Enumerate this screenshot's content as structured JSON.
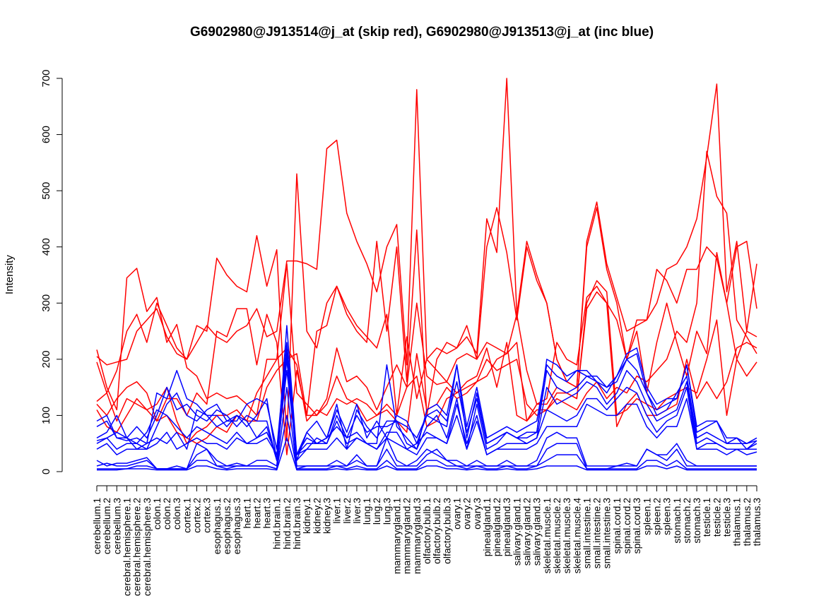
{
  "chart_data": {
    "type": "line",
    "title": "G6902980@J913514@j_at (skip red), G6902980@J913513@j_at (inc blue)",
    "ylabel": "Intensity",
    "ylim": [
      0,
      700
    ],
    "yticks": [
      0,
      100,
      200,
      300,
      400,
      500,
      600,
      700
    ],
    "categories": [
      "cerebellum.1",
      "cerebellum.2",
      "cerebellum.3",
      "cerebral.hemisphere.1",
      "cerebral.hemisphere.2",
      "cerebral.hemisphere.3",
      "colon.1",
      "colon.2",
      "colon.3",
      "cortex.1",
      "cortex.2",
      "cortex.3",
      "esophagus.1",
      "esophagus.2",
      "esophagus.3",
      "heart.1",
      "heart.2",
      "heart.3",
      "hind.brain.1",
      "hind.brain.2",
      "hind.brain.3",
      "kidney.1",
      "kidney.2",
      "kidney.3",
      "liver.1",
      "liver.2",
      "liver.3",
      "lung.1",
      "lung.2",
      "lung.3",
      "mammarygland.1",
      "mammarygland.2",
      "mammarygland.3",
      "olfactory.bulb.1",
      "olfactory.bulb.2",
      "olfactory.bulb.3",
      "ovary.1",
      "ovary.2",
      "ovary.3",
      "pinealgland.1",
      "pinealgland.2",
      "pinealgland.3",
      "salivary.gland.1",
      "salivary.gland.2",
      "salivary.gland.3",
      "skeletal.muscle.1",
      "skeletal.muscle.2",
      "skeletal.muscle.3",
      "skeletal.muscle.4",
      "small.intestine.1",
      "small.intestine.2",
      "small.intestine.3",
      "spinal.cord.1",
      "spinal.cord.2",
      "spinal.cord.3",
      "spleen.1",
      "spleen.2",
      "spleen.3",
      "stomach.1",
      "stomach.2",
      "stomach.3",
      "testicle.1",
      "testicle.2",
      "testicle.3",
      "thalamus.1",
      "thalamus.2",
      "thalamus.3"
    ],
    "colors": {
      "skip": "#ff0000",
      "inc": "#0000ff"
    },
    "series": [
      {
        "group": "skip",
        "values": [
          217,
          150,
          110,
          345,
          362,
          285,
          310,
          230,
          262,
          185,
          170,
          130,
          140,
          130,
          135,
          120,
          100,
          200,
          200,
          370,
          140,
          120,
          100,
          130,
          220,
          160,
          170,
          150,
          110,
          150,
          190,
          150,
          300,
          170,
          155,
          160,
          140,
          150,
          160,
          170,
          200,
          210,
          230,
          90,
          110,
          110,
          130,
          120,
          110,
          140,
          160,
          130,
          150,
          140,
          170,
          160,
          180,
          200,
          250,
          230,
          300,
          570,
          490,
          460,
          270,
          240,
          210
        ]
      },
      {
        "group": "skip",
        "values": [
          205,
          190,
          195,
          200,
          250,
          270,
          290,
          240,
          210,
          200,
          230,
          260,
          240,
          230,
          250,
          260,
          290,
          240,
          250,
          375,
          375,
          370,
          360,
          575,
          590,
          460,
          410,
          370,
          320,
          400,
          440,
          190,
          680,
          200,
          220,
          210,
          220,
          240,
          210,
          450,
          390,
          700,
          280,
          410,
          350,
          300,
          200,
          160,
          150,
          410,
          480,
          370,
          310,
          250,
          260,
          270,
          300,
          360,
          370,
          400,
          450,
          560,
          690,
          320,
          410,
          250,
          370
        ]
      },
      {
        "group": "skip",
        "values": [
          195,
          140,
          180,
          250,
          280,
          230,
          300,
          260,
          220,
          200,
          260,
          250,
          380,
          350,
          330,
          320,
          420,
          330,
          395,
          55,
          530,
          250,
          220,
          300,
          330,
          280,
          250,
          230,
          410,
          250,
          400,
          160,
          430,
          100,
          200,
          230,
          220,
          260,
          200,
          400,
          470,
          390,
          270,
          400,
          340,
          300,
          200,
          160,
          150,
          400,
          470,
          360,
          300,
          200,
          270,
          270,
          360,
          340,
          300,
          360,
          360,
          400,
          380,
          300,
          400,
          410,
          290
        ]
      },
      {
        "group": "skip",
        "values": [
          120,
          100,
          130,
          150,
          160,
          140,
          90,
          130,
          130,
          100,
          140,
          120,
          250,
          240,
          290,
          290,
          190,
          280,
          230,
          30,
          180,
          100,
          250,
          260,
          330,
          290,
          260,
          240,
          220,
          280,
          100,
          240,
          130,
          200,
          180,
          160,
          200,
          210,
          200,
          230,
          220,
          210,
          280,
          180,
          120,
          130,
          230,
          200,
          190,
          310,
          330,
          300,
          270,
          200,
          250,
          140,
          230,
          300,
          230,
          170,
          250,
          210,
          390,
          300,
          200,
          250,
          240
        ]
      },
      {
        "group": "skip",
        "values": [
          125,
          140,
          90,
          130,
          120,
          110,
          120,
          150,
          90,
          50,
          70,
          80,
          100,
          100,
          110,
          90,
          90,
          150,
          180,
          200,
          210,
          100,
          100,
          120,
          170,
          130,
          120,
          90,
          100,
          110,
          90,
          70,
          210,
          110,
          120,
          150,
          130,
          140,
          160,
          200,
          180,
          190,
          200,
          120,
          100,
          110,
          140,
          140,
          130,
          290,
          320,
          300,
          80,
          120,
          140,
          100,
          100,
          110,
          120,
          200,
          130,
          160,
          130,
          160,
          220,
          230,
          220
        ]
      },
      {
        "group": "skip",
        "values": [
          110,
          80,
          70,
          100,
          130,
          110,
          90,
          100,
          70,
          60,
          50,
          60,
          80,
          70,
          100,
          90,
          140,
          170,
          200,
          220,
          190,
          90,
          110,
          100,
          130,
          120,
          130,
          120,
          100,
          120,
          100,
          150,
          170,
          80,
          90,
          130,
          140,
          160,
          170,
          220,
          150,
          230,
          100,
          90,
          120,
          120,
          150,
          140,
          130,
          300,
          340,
          320,
          100,
          110,
          130,
          120,
          110,
          130,
          140,
          150,
          140,
          200,
          270,
          100,
          200,
          170,
          195
        ]
      },
      {
        "group": "inc",
        "values": [
          90,
          100,
          60,
          55,
          60,
          50,
          60,
          50,
          70,
          40,
          110,
          100,
          100,
          80,
          100,
          80,
          100,
          130,
          20,
          220,
          20,
          70,
          90,
          60,
          120,
          40,
          110,
          80,
          60,
          90,
          90,
          80,
          60,
          100,
          90,
          80,
          190,
          80,
          150,
          60,
          70,
          80,
          70,
          80,
          90,
          190,
          170,
          160,
          180,
          170,
          160,
          150,
          170,
          210,
          220,
          150,
          120,
          130,
          130,
          190,
          80,
          90,
          90,
          60,
          60,
          40,
          55
        ]
      },
      {
        "group": "inc",
        "values": [
          80,
          90,
          60,
          60,
          80,
          60,
          100,
          150,
          110,
          120,
          100,
          90,
          110,
          100,
          80,
          100,
          90,
          90,
          20,
          260,
          30,
          70,
          50,
          60,
          110,
          70,
          120,
          60,
          90,
          60,
          100,
          90,
          50,
          100,
          110,
          90,
          160,
          70,
          130,
          50,
          60,
          70,
          60,
          70,
          70,
          200,
          190,
          170,
          180,
          180,
          160,
          140,
          170,
          200,
          210,
          140,
          110,
          120,
          130,
          190,
          70,
          80,
          90,
          50,
          60,
          50,
          60
        ]
      },
      {
        "group": "inc",
        "values": [
          60,
          70,
          100,
          60,
          50,
          40,
          80,
          120,
          140,
          100,
          90,
          110,
          120,
          90,
          100,
          90,
          60,
          70,
          30,
          200,
          30,
          60,
          50,
          50,
          100,
          60,
          70,
          50,
          50,
          190,
          80,
          60,
          40,
          110,
          120,
          100,
          190,
          60,
          140,
          50,
          60,
          70,
          60,
          60,
          70,
          180,
          150,
          140,
          150,
          170,
          170,
          150,
          160,
          200,
          180,
          140,
          100,
          110,
          140,
          170,
          60,
          70,
          60,
          50,
          50,
          50,
          55
        ]
      },
      {
        "group": "inc",
        "values": [
          55,
          60,
          70,
          60,
          40,
          50,
          140,
          130,
          180,
          130,
          120,
          100,
          80,
          90,
          90,
          120,
          130,
          120,
          40,
          230,
          30,
          50,
          50,
          60,
          80,
          60,
          100,
          70,
          80,
          80,
          90,
          50,
          40,
          80,
          100,
          60,
          130,
          40,
          120,
          40,
          50,
          70,
          60,
          50,
          60,
          150,
          120,
          130,
          140,
          160,
          150,
          120,
          140,
          180,
          160,
          120,
          90,
          100,
          110,
          160,
          50,
          60,
          50,
          40,
          40,
          40,
          50
        ]
      },
      {
        "group": "inc",
        "values": [
          50,
          60,
          40,
          50,
          50,
          70,
          110,
          100,
          80,
          60,
          80,
          70,
          60,
          50,
          70,
          50,
          60,
          80,
          20,
          200,
          20,
          40,
          60,
          50,
          90,
          50,
          60,
          50,
          40,
          70,
          70,
          40,
          50,
          70,
          60,
          50,
          120,
          50,
          100,
          30,
          40,
          50,
          50,
          50,
          60,
          110,
          100,
          90,
          100,
          130,
          130,
          110,
          130,
          150,
          140,
          100,
          70,
          90,
          100,
          150,
          40,
          50,
          50,
          40,
          40,
          40,
          40
        ]
      },
      {
        "group": "inc",
        "values": [
          40,
          50,
          30,
          40,
          40,
          40,
          50,
          70,
          40,
          50,
          60,
          50,
          50,
          40,
          60,
          50,
          50,
          60,
          30,
          180,
          30,
          40,
          40,
          40,
          60,
          40,
          60,
          50,
          40,
          60,
          50,
          40,
          30,
          60,
          60,
          50,
          100,
          40,
          90,
          30,
          40,
          40,
          40,
          40,
          50,
          80,
          80,
          80,
          80,
          120,
          110,
          100,
          100,
          120,
          120,
          80,
          60,
          80,
          80,
          130,
          40,
          40,
          40,
          30,
          40,
          30,
          35
        ]
      },
      {
        "group": "inc",
        "values": [
          20,
          10,
          15,
          15,
          20,
          25,
          5,
          5,
          10,
          5,
          50,
          40,
          20,
          10,
          15,
          10,
          20,
          20,
          10,
          210,
          10,
          10,
          10,
          10,
          20,
          10,
          30,
          10,
          10,
          60,
          20,
          10,
          20,
          40,
          30,
          20,
          20,
          10,
          20,
          10,
          10,
          20,
          10,
          10,
          20,
          60,
          70,
          60,
          60,
          10,
          10,
          10,
          10,
          15,
          10,
          40,
          30,
          30,
          50,
          20,
          10,
          10,
          10,
          10,
          10,
          10,
          10
        ]
      },
      {
        "group": "inc",
        "values": [
          10,
          15,
          10,
          10,
          15,
          20,
          5,
          5,
          5,
          5,
          30,
          40,
          10,
          10,
          10,
          10,
          10,
          10,
          5,
          150,
          5,
          10,
          10,
          10,
          10,
          10,
          20,
          10,
          10,
          40,
          10,
          10,
          10,
          30,
          40,
          20,
          10,
          10,
          10,
          10,
          10,
          10,
          10,
          10,
          10,
          40,
          50,
          50,
          50,
          5,
          5,
          5,
          10,
          10,
          10,
          40,
          30,
          20,
          40,
          10,
          10,
          10,
          10,
          10,
          10,
          10,
          10
        ]
      },
      {
        "group": "inc",
        "values": [
          5,
          5,
          5,
          5,
          10,
          10,
          5,
          5,
          5,
          5,
          20,
          20,
          10,
          5,
          10,
          10,
          10,
          10,
          5,
          100,
          5,
          5,
          5,
          5,
          10,
          5,
          10,
          5,
          5,
          20,
          5,
          5,
          5,
          20,
          20,
          10,
          10,
          5,
          10,
          5,
          5,
          10,
          5,
          5,
          10,
          20,
          30,
          30,
          30,
          5,
          5,
          5,
          5,
          5,
          5,
          20,
          20,
          10,
          20,
          5,
          5,
          5,
          5,
          5,
          5,
          5,
          5
        ]
      },
      {
        "group": "inc",
        "values": [
          3,
          3,
          3,
          5,
          5,
          5,
          3,
          3,
          3,
          3,
          10,
          10,
          5,
          3,
          5,
          5,
          5,
          5,
          3,
          60,
          3,
          3,
          3,
          3,
          5,
          3,
          5,
          3,
          3,
          10,
          3,
          3,
          3,
          10,
          10,
          5,
          5,
          3,
          5,
          3,
          3,
          5,
          3,
          3,
          5,
          10,
          10,
          10,
          10,
          3,
          3,
          3,
          3,
          3,
          3,
          10,
          10,
          5,
          10,
          3,
          3,
          3,
          3,
          3,
          3,
          3,
          3
        ]
      }
    ]
  }
}
